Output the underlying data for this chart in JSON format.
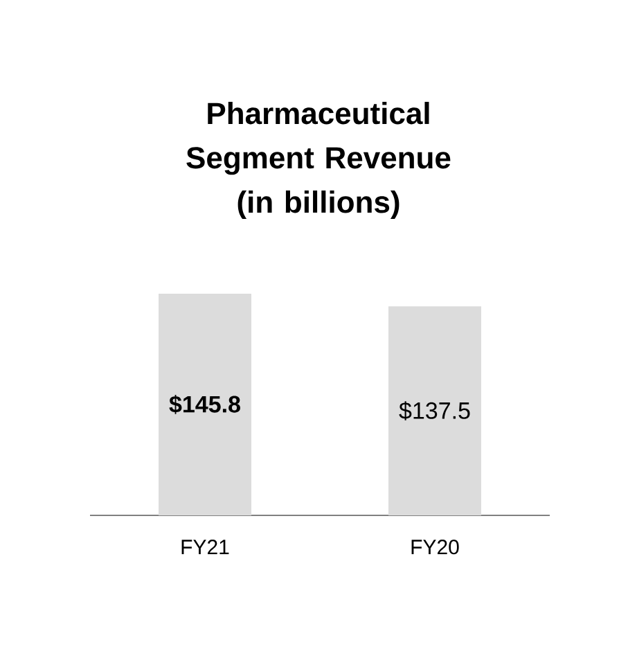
{
  "chart_data": {
    "type": "bar",
    "title": "Pharmaceutical Segment Revenue (in billions)",
    "categories": [
      "FY21",
      "FY20"
    ],
    "values": [
      145.8,
      137.5
    ],
    "value_labels": [
      "**$145.8**",
      "$137.5"
    ],
    "color": "#dcdcdc"
  }
}
